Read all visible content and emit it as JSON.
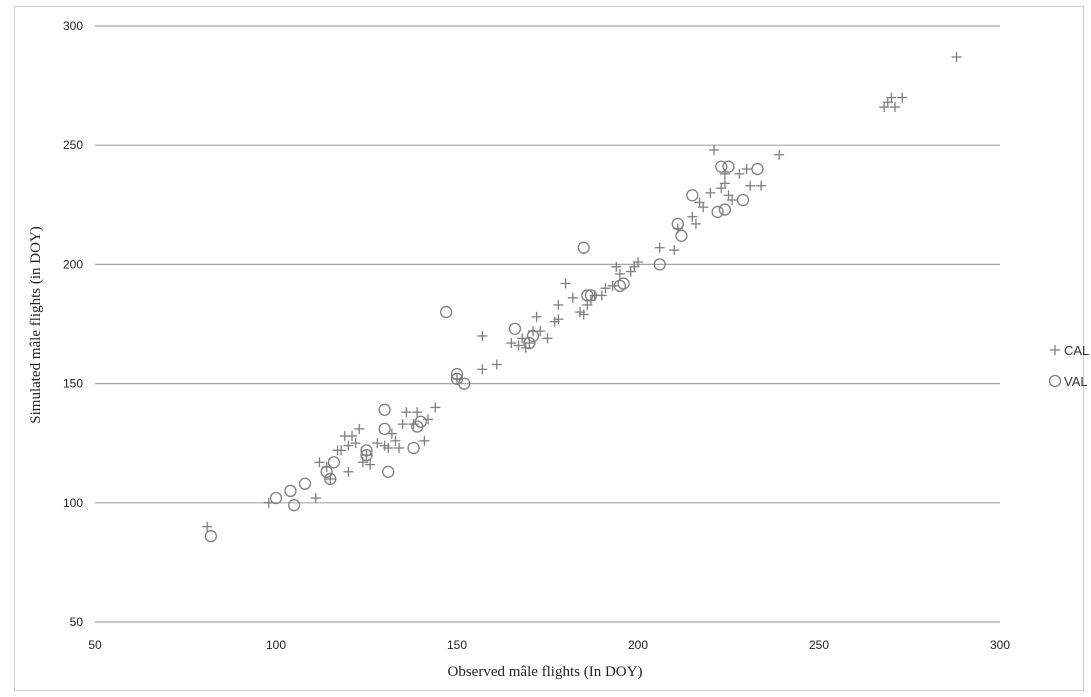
{
  "chart_data": {
    "type": "scatter",
    "title": "",
    "xlabel": "Observed mâle flights (In DOY)",
    "ylabel": "Simulated mâle flights (in DOY)",
    "xlim": [
      50,
      300
    ],
    "ylim": [
      50,
      300
    ],
    "x_ticks": [
      "50",
      "100",
      "150",
      "200",
      "250",
      "300"
    ],
    "y_ticks": [
      "50",
      "100",
      "150",
      "200",
      "250",
      "300"
    ],
    "grid": "horizontal major gridlines",
    "legend": "right",
    "series": [
      {
        "name": "CAL",
        "marker": "plus",
        "color": "#7f7f7f",
        "points": [
          [
            81,
            90
          ],
          [
            98,
            100
          ],
          [
            111,
            102
          ],
          [
            112,
            117
          ],
          [
            114,
            115
          ],
          [
            115,
            110
          ],
          [
            117,
            122
          ],
          [
            118,
            122
          ],
          [
            119,
            128
          ],
          [
            120,
            113
          ],
          [
            120,
            124
          ],
          [
            121,
            128
          ],
          [
            122,
            125
          ],
          [
            123,
            131
          ],
          [
            124,
            117
          ],
          [
            125,
            120
          ],
          [
            126,
            116
          ],
          [
            128,
            125
          ],
          [
            130,
            124
          ],
          [
            131,
            123
          ],
          [
            132,
            129
          ],
          [
            133,
            126
          ],
          [
            134,
            123
          ],
          [
            135,
            133
          ],
          [
            136,
            138
          ],
          [
            138,
            133
          ],
          [
            139,
            138
          ],
          [
            141,
            126
          ],
          [
            142,
            135
          ],
          [
            144,
            140
          ],
          [
            150,
            152
          ],
          [
            157,
            156
          ],
          [
            157,
            170
          ],
          [
            161,
            158
          ],
          [
            165,
            167
          ],
          [
            167,
            166
          ],
          [
            168,
            169
          ],
          [
            169,
            165
          ],
          [
            170,
            167
          ],
          [
            171,
            172
          ],
          [
            172,
            178
          ],
          [
            173,
            172
          ],
          [
            175,
            169
          ],
          [
            177,
            176
          ],
          [
            178,
            177
          ],
          [
            178,
            183
          ],
          [
            180,
            192
          ],
          [
            182,
            186
          ],
          [
            184,
            180
          ],
          [
            185,
            179
          ],
          [
            186,
            183
          ],
          [
            187,
            185
          ],
          [
            188,
            187
          ],
          [
            190,
            187
          ],
          [
            191,
            190
          ],
          [
            193,
            191
          ],
          [
            194,
            199
          ],
          [
            195,
            196
          ],
          [
            198,
            197
          ],
          [
            199,
            199
          ],
          [
            200,
            201
          ],
          [
            206,
            207
          ],
          [
            210,
            206
          ],
          [
            211,
            215
          ],
          [
            215,
            220
          ],
          [
            216,
            217
          ],
          [
            217,
            226
          ],
          [
            218,
            224
          ],
          [
            220,
            230
          ],
          [
            221,
            248
          ],
          [
            223,
            232
          ],
          [
            224,
            234
          ],
          [
            224,
            238
          ],
          [
            225,
            229
          ],
          [
            226,
            227
          ],
          [
            228,
            238
          ],
          [
            230,
            240
          ],
          [
            231,
            233
          ],
          [
            234,
            233
          ],
          [
            239,
            246
          ],
          [
            268,
            266
          ],
          [
            269,
            268
          ],
          [
            270,
            270
          ],
          [
            271,
            266
          ],
          [
            273,
            270
          ],
          [
            288,
            287
          ]
        ]
      },
      {
        "name": "VAL",
        "marker": "circle",
        "color": "#7f7f7f",
        "points": [
          [
            82,
            86
          ],
          [
            100,
            102
          ],
          [
            104,
            105
          ],
          [
            105,
            99
          ],
          [
            108,
            108
          ],
          [
            114,
            113
          ],
          [
            115,
            110
          ],
          [
            116,
            117
          ],
          [
            125,
            122
          ],
          [
            125,
            120
          ],
          [
            130,
            139
          ],
          [
            130,
            131
          ],
          [
            131,
            113
          ],
          [
            138,
            123
          ],
          [
            139,
            132
          ],
          [
            140,
            134
          ],
          [
            147,
            180
          ],
          [
            150,
            154
          ],
          [
            150,
            152
          ],
          [
            152,
            150
          ],
          [
            166,
            173
          ],
          [
            170,
            167
          ],
          [
            171,
            170
          ],
          [
            185,
            207
          ],
          [
            186,
            187
          ],
          [
            187,
            187
          ],
          [
            195,
            191
          ],
          [
            196,
            192
          ],
          [
            206,
            200
          ],
          [
            211,
            217
          ],
          [
            212,
            212
          ],
          [
            215,
            229
          ],
          [
            222,
            222
          ],
          [
            223,
            241
          ],
          [
            224,
            223
          ],
          [
            225,
            241
          ],
          [
            229,
            227
          ],
          [
            233,
            240
          ]
        ]
      }
    ]
  }
}
